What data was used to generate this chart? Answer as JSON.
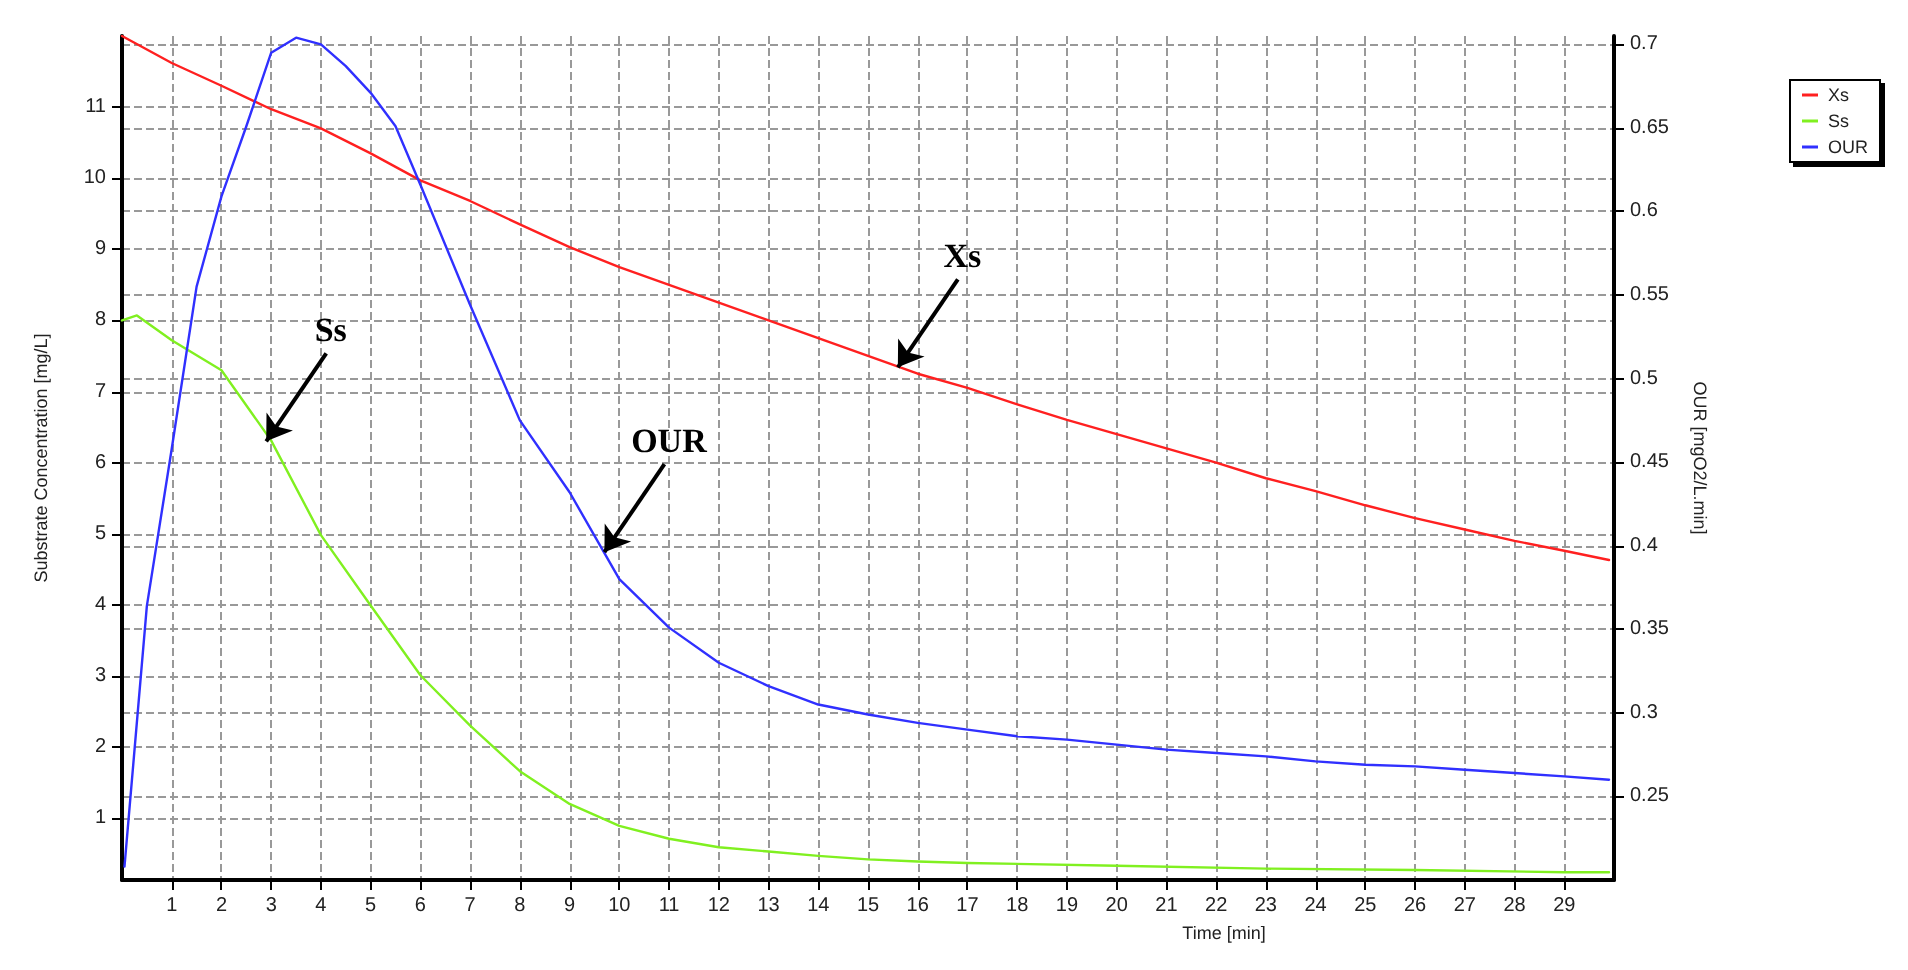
{
  "chart_data": {
    "type": "line",
    "xlabel": "Time [min]",
    "ylabel": "Substrate Concentration [mg/L]",
    "y2label": "OUR [mgO2/L.min]",
    "xlim": [
      0,
      30
    ],
    "xticks": [
      1,
      2,
      3,
      4,
      5,
      6,
      7,
      8,
      9,
      10,
      11,
      12,
      13,
      14,
      15,
      16,
      17,
      18,
      19,
      20,
      21,
      22,
      23,
      24,
      25,
      26,
      27,
      28,
      29
    ],
    "ylim": [
      0.13,
      12
    ],
    "yticks": [
      1,
      2,
      3,
      4,
      5,
      6,
      7,
      8,
      9,
      10,
      11
    ],
    "y2lim": [
      0.2,
      0.705
    ],
    "y2ticks": [
      0.25,
      0.3,
      0.35,
      0.4,
      0.45,
      0.5,
      0.55,
      0.6,
      0.65,
      0.7
    ],
    "grid": true,
    "legend": "top right",
    "marker": "none",
    "line_style": "solid",
    "series": [
      {
        "name": "Xs",
        "color": "#ff2020",
        "x": [
          0,
          1,
          2,
          3,
          4,
          5,
          6,
          7,
          8,
          9,
          10,
          11,
          12,
          13,
          14,
          15,
          16,
          17,
          18,
          19,
          20,
          21,
          22,
          23,
          24,
          25,
          26,
          27,
          28,
          29,
          29.9
        ],
        "values": [
          12,
          11.62,
          11.3,
          10.97,
          10.7,
          10.35,
          9.97,
          9.68,
          9.35,
          9.03,
          8.75,
          8.5,
          8.25,
          8.0,
          7.75,
          7.5,
          7.25,
          7.05,
          6.82,
          6.6,
          6.4,
          6.2,
          6.0,
          5.78,
          5.6,
          5.4,
          5.22,
          5.06,
          4.9,
          4.76,
          4.63
        ]
      },
      {
        "name": "Ss",
        "color": "#80f020",
        "x": [
          0,
          0.3,
          1,
          2,
          3,
          4,
          5,
          6,
          7,
          8,
          9,
          10,
          11,
          12,
          13,
          14,
          15,
          16,
          17,
          20,
          23,
          26,
          29,
          29.9
        ],
        "values": [
          8.0,
          8.07,
          7.72,
          7.3,
          6.31,
          4.98,
          3.99,
          3.01,
          2.3,
          1.66,
          1.2,
          0.89,
          0.71,
          0.59,
          0.53,
          0.47,
          0.42,
          0.39,
          0.37,
          0.33,
          0.29,
          0.27,
          0.24,
          0.24
        ]
      },
      {
        "name": "OUR",
        "color": "#3030ff",
        "axis": "y2",
        "x": [
          0.05,
          0.5,
          1,
          1.5,
          2,
          2.5,
          3,
          3.5,
          4,
          4.5,
          5,
          5.5,
          6,
          7,
          8,
          9,
          10,
          11,
          12,
          13,
          14,
          15,
          16,
          17,
          18,
          19,
          20,
          21,
          22,
          23,
          24,
          25,
          26,
          27,
          28,
          29,
          29.9
        ],
        "values": [
          0.208,
          0.364,
          0.458,
          0.555,
          0.609,
          0.651,
          0.695,
          0.704,
          0.7,
          0.687,
          0.671,
          0.651,
          0.616,
          0.544,
          0.475,
          0.432,
          0.38,
          0.351,
          0.33,
          0.316,
          0.305,
          0.299,
          0.294,
          0.29,
          0.286,
          0.284,
          0.281,
          0.278,
          0.276,
          0.274,
          0.271,
          0.269,
          0.268,
          0.266,
          0.264,
          0.262,
          0.26
        ]
      }
    ],
    "annotations": [
      {
        "text": "Ss",
        "x": 2.9,
        "y": 6.3
      },
      {
        "text": "OUR",
        "x": 9.7,
        "y": 4.74
      },
      {
        "text": "Xs",
        "x": 15.6,
        "y": 7.34
      }
    ]
  }
}
